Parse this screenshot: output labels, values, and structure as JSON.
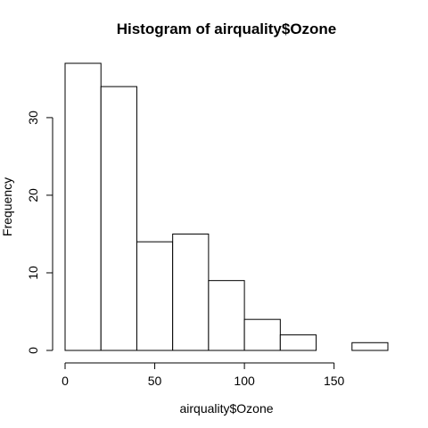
{
  "chart_data": {
    "type": "bar",
    "title": "Histogram of airquality$Ozone",
    "xlabel": "airquality$Ozone",
    "ylabel": "Frequency",
    "bins": [
      {
        "start": 0,
        "end": 20,
        "count": 37
      },
      {
        "start": 20,
        "end": 40,
        "count": 34
      },
      {
        "start": 40,
        "end": 60,
        "count": 14
      },
      {
        "start": 60,
        "end": 80,
        "count": 15
      },
      {
        "start": 80,
        "end": 100,
        "count": 9
      },
      {
        "start": 100,
        "end": 120,
        "count": 4
      },
      {
        "start": 120,
        "end": 140,
        "count": 2
      },
      {
        "start": 140,
        "end": 160,
        "count": 0
      },
      {
        "start": 160,
        "end": 180,
        "count": 1
      }
    ],
    "xlim": [
      0,
      180
    ],
    "ylim": [
      0,
      37
    ],
    "x_ticks": [
      0,
      50,
      100,
      150
    ],
    "y_ticks": [
      0,
      10,
      20,
      30
    ],
    "grid": false,
    "bar_fill": "#ffffff",
    "bar_stroke": "#000000"
  }
}
